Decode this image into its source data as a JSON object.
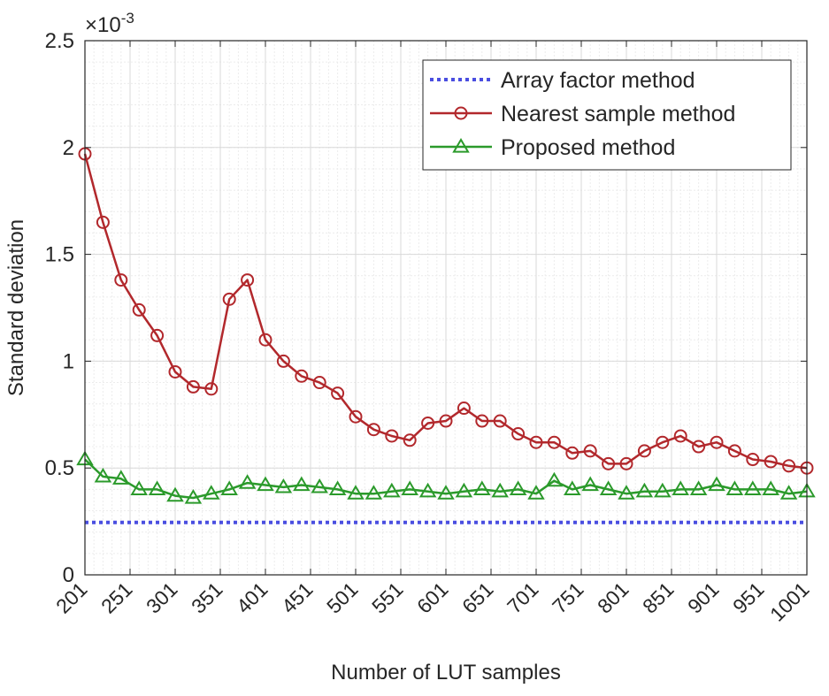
{
  "chart_data": {
    "type": "line",
    "xlabel": "Number of LUT samples",
    "ylabel": "Standard deviation",
    "exponent_label": "×10",
    "exponent_power": "-3",
    "xlim": [
      201,
      1001
    ],
    "ylim": [
      0,
      2.5
    ],
    "xticks": [
      "201",
      "251",
      "301",
      "351",
      "401",
      "451",
      "501",
      "551",
      "601",
      "651",
      "701",
      "751",
      "801",
      "851",
      "901",
      "951",
      "1001"
    ],
    "yticks": [
      "0",
      "0.5",
      "1",
      "1.5",
      "2",
      "2.5"
    ],
    "grid": true,
    "minor_grid": true,
    "legend_position": "top-right",
    "x": [
      201,
      221,
      241,
      261,
      281,
      301,
      321,
      341,
      361,
      381,
      401,
      421,
      441,
      461,
      481,
      501,
      521,
      541,
      561,
      581,
      601,
      621,
      641,
      661,
      681,
      701,
      721,
      741,
      761,
      781,
      801,
      821,
      841,
      861,
      881,
      901,
      921,
      941,
      961,
      981,
      1001
    ],
    "series": [
      {
        "name": "Array factor method",
        "color": "#4a4ee0",
        "style": "dotted",
        "marker": "none",
        "values": [
          0.245,
          0.245,
          0.245,
          0.245,
          0.245,
          0.245,
          0.245,
          0.245,
          0.245,
          0.245,
          0.245,
          0.245,
          0.245,
          0.245,
          0.245,
          0.245,
          0.245,
          0.245,
          0.245,
          0.245,
          0.245,
          0.245,
          0.245,
          0.245,
          0.245,
          0.245,
          0.245,
          0.245,
          0.245,
          0.245,
          0.245,
          0.245,
          0.245,
          0.245,
          0.245,
          0.245,
          0.245,
          0.245,
          0.245,
          0.245,
          0.245
        ]
      },
      {
        "name": "Nearest sample method",
        "color": "#b2282c",
        "style": "solid",
        "marker": "circle",
        "values": [
          1.97,
          1.65,
          1.38,
          1.24,
          1.12,
          0.95,
          0.88,
          0.87,
          1.29,
          1.38,
          1.1,
          1.0,
          0.93,
          0.9,
          0.85,
          0.74,
          0.68,
          0.65,
          0.63,
          0.71,
          0.72,
          0.78,
          0.72,
          0.72,
          0.66,
          0.62,
          0.62,
          0.57,
          0.58,
          0.52,
          0.52,
          0.58,
          0.62,
          0.65,
          0.6,
          0.62,
          0.58,
          0.54,
          0.53,
          0.51,
          0.5
        ]
      },
      {
        "name": "Proposed method",
        "color": "#2b9a2b",
        "style": "solid",
        "marker": "triangle",
        "values": [
          0.54,
          0.46,
          0.45,
          0.4,
          0.4,
          0.37,
          0.36,
          0.38,
          0.4,
          0.43,
          0.42,
          0.41,
          0.42,
          0.41,
          0.4,
          0.38,
          0.38,
          0.39,
          0.4,
          0.39,
          0.38,
          0.39,
          0.4,
          0.39,
          0.4,
          0.38,
          0.44,
          0.4,
          0.42,
          0.4,
          0.38,
          0.39,
          0.39,
          0.4,
          0.4,
          0.42,
          0.4,
          0.4,
          0.4,
          0.38,
          0.39
        ]
      }
    ]
  }
}
